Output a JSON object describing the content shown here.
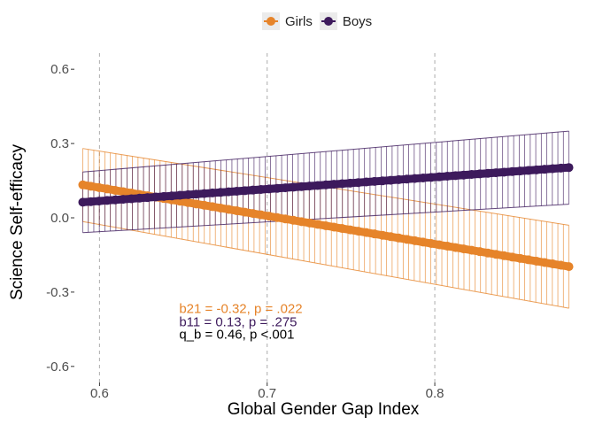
{
  "chart_data": {
    "type": "line",
    "xlabel": "Global Gender Gap Index",
    "ylabel": "Science Self-efficacy",
    "xlim": [
      0.585,
      0.885
    ],
    "ylim": [
      -0.665,
      0.665
    ],
    "x_ticks": [
      0.6,
      0.7,
      0.8
    ],
    "x_tick_labels": [
      "0.6",
      "0.7",
      "0.8"
    ],
    "y_ticks": [
      -0.6,
      -0.3,
      0.0,
      0.3,
      0.6
    ],
    "y_tick_labels": [
      "-0.6",
      "-0.3",
      "0.0",
      "0.3",
      "0.6"
    ],
    "grid": "vertical dashed at x ticks",
    "legend_position": "top",
    "series": [
      {
        "name": "Girls",
        "color": "#e6842a",
        "x": [
          0.59,
          0.88
        ],
        "y": [
          0.133,
          -0.197
        ],
        "ci_lower": [
          -0.015,
          -0.365
        ],
        "ci_upper": [
          0.28,
          -0.03
        ]
      },
      {
        "name": "Boys",
        "color": "#3d1a5c",
        "x": [
          0.59,
          0.88
        ],
        "y": [
          0.063,
          0.203
        ],
        "ci_lower": [
          -0.06,
          0.055
        ],
        "ci_upper": [
          0.185,
          0.35
        ]
      }
    ],
    "annotations": [
      {
        "text": "b21 = -0.32, p = .022",
        "x": 0.6475,
        "y": -0.385,
        "color": "#e6842a"
      },
      {
        "text": "b11 = 0.13, p = .275",
        "x": 0.6475,
        "y": -0.438,
        "color": "#3d1a5c"
      },
      {
        "text": "q_b = 0.46, p <.001",
        "x": 0.6475,
        "y": -0.488,
        "color": "#000000"
      }
    ]
  },
  "legend": {
    "items": [
      {
        "label": "Girls",
        "color": "#e6842a"
      },
      {
        "label": "Boys",
        "color": "#3d1a5c"
      }
    ]
  }
}
